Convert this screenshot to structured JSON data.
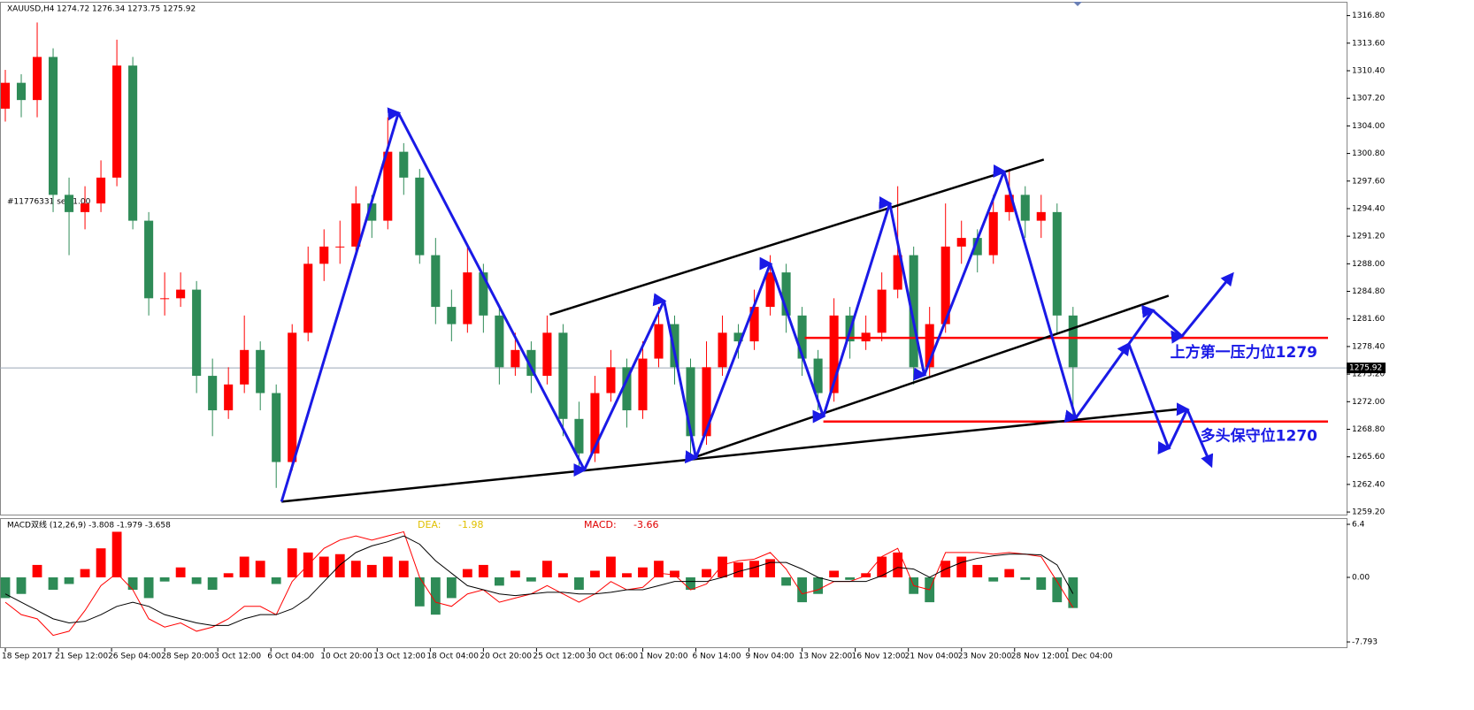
{
  "chart_data": [
    {
      "type": "candlestick",
      "title": "XAUUSD,H4",
      "quote": [
        1274.72,
        1276.34,
        1273.75,
        1275.92
      ],
      "note": "#11776331 sell 1.00",
      "up_color": "#ff0000",
      "down_color": "#2e8b57",
      "xlim": [
        -2,
        505
      ],
      "ylim": [
        1258.9,
        1318.3
      ],
      "x": [
        0,
        6,
        12,
        18,
        24,
        30,
        36,
        42,
        48,
        54,
        60,
        66,
        72,
        78,
        84,
        90,
        96,
        102,
        108,
        114,
        120,
        126,
        132,
        138,
        144,
        150,
        156,
        162,
        168,
        174,
        180,
        186,
        192,
        198,
        204,
        210,
        216,
        222,
        228,
        234,
        240,
        246,
        252,
        258,
        264,
        270,
        276,
        282,
        288,
        294,
        300,
        306,
        312,
        318,
        324,
        330,
        336,
        342,
        348,
        354,
        360,
        366,
        372,
        378,
        384,
        390,
        396,
        402
      ],
      "open": [
        1306,
        1309,
        1307,
        1312,
        1296,
        1294,
        1295,
        1298,
        1311,
        1293,
        1284,
        1284,
        1285,
        1275,
        1271,
        1274,
        1278,
        1273,
        1265,
        1280,
        1288,
        1290,
        1290,
        1295,
        1293,
        1301,
        1298,
        1289,
        1283,
        1281,
        1287,
        1282,
        1276,
        1278,
        1275,
        1280,
        1270,
        1266,
        1273,
        1276,
        1271,
        1277,
        1281,
        1276,
        1268,
        1276,
        1280,
        1279,
        1283,
        1287,
        1282,
        1277,
        1273,
        1282,
        1279,
        1280,
        1285,
        1289,
        1276,
        1281,
        1290,
        1291,
        1289,
        1294,
        1296,
        1293,
        1294,
        1282
      ],
      "high": [
        1310.5,
        1310,
        1316,
        1313,
        1298,
        1297,
        1300,
        1314,
        1312,
        1294,
        1287,
        1287,
        1286,
        1277,
        1276,
        1282,
        1279,
        1274,
        1281,
        1290,
        1292,
        1293,
        1297,
        1296,
        1305,
        1302,
        1299,
        1291,
        1285,
        1290,
        1288,
        1283,
        1280,
        1279,
        1282,
        1281,
        1272,
        1275,
        1278,
        1277,
        1279,
        1283,
        1282,
        1277,
        1279,
        1282,
        1281,
        1285,
        1289,
        1288,
        1283,
        1278,
        1284,
        1283,
        1282,
        1287,
        1297,
        1290,
        1283,
        1295,
        1293,
        1292,
        1296,
        1299,
        1297,
        1296,
        1295,
        1283
      ],
      "low": [
        1304.5,
        1305,
        1305,
        1294,
        1289,
        1292,
        1294,
        1297,
        1292,
        1282,
        1282,
        1283,
        1273,
        1268,
        1270,
        1273,
        1271,
        1262,
        1264,
        1279,
        1286,
        1288,
        1289,
        1291,
        1292,
        1296,
        1288,
        1281,
        1279,
        1280,
        1280,
        1274,
        1275,
        1273,
        1274,
        1268,
        1264,
        1265,
        1272,
        1269,
        1270,
        1276,
        1274,
        1266,
        1267,
        1275,
        1277,
        1278,
        1282,
        1280,
        1275,
        1271,
        1272,
        1277,
        1278,
        1279,
        1284,
        1274,
        1275,
        1280,
        1288,
        1287,
        1288,
        1293,
        1291,
        1291,
        1280,
        1270
      ],
      "close": [
        1309,
        1307,
        1312,
        1296,
        1294,
        1295,
        1298,
        1311,
        1293,
        1284,
        1284,
        1285,
        1275,
        1271,
        1274,
        1278,
        1273,
        1265,
        1280,
        1288,
        1290,
        1290,
        1295,
        1293,
        1301,
        1298,
        1289,
        1283,
        1281,
        1287,
        1282,
        1276,
        1278,
        1275,
        1280,
        1270,
        1266,
        1273,
        1276,
        1271,
        1277,
        1281,
        1276,
        1268,
        1276,
        1280,
        1279,
        1283,
        1287,
        1282,
        1277,
        1273,
        1282,
        1279,
        1280,
        1285,
        1289,
        1276,
        1281,
        1290,
        1291,
        1289,
        1294,
        1296,
        1293,
        1294,
        1282,
        1276
      ],
      "yticks": [
        {
          "value": 1316.8,
          "label": "1316.80"
        },
        {
          "value": 1313.6,
          "label": "1313.60"
        },
        {
          "value": 1310.4,
          "label": "1310.40"
        },
        {
          "value": 1307.2,
          "label": "1307.20"
        },
        {
          "value": 1304,
          "label": "1304.00"
        },
        {
          "value": 1300.8,
          "label": "1300.80"
        },
        {
          "value": 1297.6,
          "label": "1297.60"
        },
        {
          "value": 1294.4,
          "label": "1294.40"
        },
        {
          "value": 1291.2,
          "label": "1291.20"
        },
        {
          "value": 1288,
          "label": "1288.00"
        },
        {
          "value": 1284.8,
          "label": "1284.80"
        },
        {
          "value": 1281.6,
          "label": "1281.60"
        },
        {
          "value": 1278.4,
          "label": "1278.40"
        },
        {
          "value": 1275.2,
          "label": "1275.20"
        },
        {
          "value": 1272,
          "label": "1272.00"
        },
        {
          "value": 1268.8,
          "label": "1268.80"
        },
        {
          "value": 1265.6,
          "label": "1265.60"
        },
        {
          "value": 1262.4,
          "label": "1262.40"
        },
        {
          "value": 1259.2,
          "label": "1259.20"
        }
      ],
      "xticks": [
        {
          "value": 0,
          "label": "18 Sep 2017"
        },
        {
          "value": 20,
          "label": "21 Sep 12:00"
        },
        {
          "value": 40,
          "label": "26 Sep 04:00"
        },
        {
          "value": 60,
          "label": "28 Sep 20:00"
        },
        {
          "value": 80,
          "label": "3 Oct 12:00"
        },
        {
          "value": 100,
          "label": "6 Oct 04:00"
        },
        {
          "value": 120,
          "label": "10 Oct 20:00"
        },
        {
          "value": 140,
          "label": "13 Oct 12:00"
        },
        {
          "value": 160,
          "label": "18 Oct 04:00"
        },
        {
          "value": 180,
          "label": "20 Oct 20:00"
        },
        {
          "value": 200,
          "label": "25 Oct 12:00"
        },
        {
          "value": 220,
          "label": "30 Oct 06:00"
        },
        {
          "value": 240,
          "label": "1 Nov 20:00"
        },
        {
          "value": 260,
          "label": "6 Nov 14:00"
        },
        {
          "value": 280,
          "label": "9 Nov 04:00"
        },
        {
          "value": 300,
          "label": "13 Nov 22:00"
        },
        {
          "value": 320,
          "label": "16 Nov 12:00"
        },
        {
          "value": 340,
          "label": "21 Nov 04:00"
        },
        {
          "value": 360,
          "label": "23 Nov 20:00"
        },
        {
          "value": 380,
          "label": "28 Nov 12:00"
        },
        {
          "value": 400,
          "label": "1 Dec 04:00"
        }
      ],
      "trendlines": [
        {
          "color": "#000000",
          "x": [
            104,
            444
          ],
          "y": [
            1260.4,
            1271.2
          ]
        },
        {
          "color": "#000000",
          "x": [
            205,
            391
          ],
          "y": [
            1282.1,
            1300.1
          ]
        },
        {
          "color": "#000000",
          "x": [
            258,
            438
          ],
          "y": [
            1265.4,
            1284.3
          ]
        }
      ],
      "zigzags": [
        {
          "color": "#1a1ae6",
          "x": [
            104,
            148,
            218,
            248,
            260,
            288,
            308,
            333,
            346,
            376,
            403,
            423,
            432,
            443,
            462
          ],
          "y": [
            1260.4,
            1305.5,
            1264.1,
            1283.7,
            1265.5,
            1288.0,
            1270.3,
            1295.0,
            1275.1,
            1298.7,
            1270.1,
            1278.7,
            1282.6,
            1279.6,
            1286.8
          ]
        },
        {
          "color": "#1a1ae6",
          "x": [
            423,
            438,
            445,
            454
          ],
          "y": [
            1278.7,
            1266.6,
            1271.1,
            1264.6
          ]
        }
      ],
      "levels": [
        {
          "value": 1279.4,
          "x": [
            301,
            498
          ],
          "color": "#ff0000",
          "label": "上方第一压力位1279"
        },
        {
          "value": 1269.7,
          "x": [
            308,
            498
          ],
          "color": "#ff0000",
          "label": "多头保守位1270"
        }
      ]
    },
    {
      "type": "macd",
      "title": "MACD双线 (12,26,9) -3.808 -1.979 -3.658",
      "up_color": "#ff0000",
      "down_color": "#2e8b57",
      "ylim": [
        -8.43,
        7.04
      ],
      "yticks": [
        6.4,
        {
          "value": 0,
          "label": "0.00"
        },
        -7.793
      ],
      "histogram": [
        -2.5,
        -2.0,
        1.5,
        -1.5,
        -0.8,
        1.0,
        3.5,
        5.5,
        -1.5,
        -2.5,
        -0.5,
        1.2,
        -0.8,
        -1.5,
        0.5,
        2.5,
        2.0,
        -0.8,
        3.5,
        3.0,
        2.5,
        2.8,
        2.0,
        1.5,
        2.5,
        2.0,
        -3.5,
        -4.5,
        -2.5,
        1.0,
        1.5,
        -1.0,
        0.8,
        -0.5,
        2.0,
        0.5,
        -1.5,
        0.8,
        2.5,
        0.5,
        1.2,
        2.0,
        0.8,
        -1.5,
        1.0,
        2.5,
        1.8,
        2.0,
        2.2,
        -1.0,
        -3.0,
        -2.0,
        0.8,
        -0.3,
        0.5,
        2.5,
        3.0,
        -2.0,
        -3.0,
        2.0,
        2.5,
        1.5,
        -0.5,
        1.0,
        -0.3,
        -1.5,
        -3.0,
        -3.7
      ],
      "series": [
        {
          "name": "MACD:",
          "color": "#ff0000",
          "values": [
            -3,
            -4.5,
            -5,
            -7,
            -6.5,
            -4,
            -1,
            0.5,
            -1.5,
            -5,
            -6,
            -5.5,
            -6.5,
            -6,
            -5,
            -3.5,
            -3.5,
            -4.5,
            -0.5,
            1.5,
            3.5,
            4.5,
            5,
            4.5,
            5,
            5.5,
            0,
            -3,
            -3.5,
            -2,
            -1.5,
            -3,
            -2.5,
            -2,
            -1,
            -2,
            -3,
            -2,
            -0.5,
            -1.5,
            -1.2,
            0.5,
            0.3,
            -1.5,
            -0.8,
            1.5,
            2,
            2.2,
            3,
            1,
            -2,
            -1.5,
            -0.5,
            -0.5,
            0.2,
            2.5,
            3.5,
            -1,
            -1.5,
            3,
            3,
            3,
            2.8,
            3,
            2.8,
            2.5,
            -0.5,
            -3.66
          ]
        },
        {
          "name": "DEA:",
          "color": "#000000",
          "values": [
            -2,
            -3,
            -4,
            -5,
            -5.5,
            -5.3,
            -4.5,
            -3.5,
            -3,
            -3.5,
            -4.5,
            -5,
            -5.5,
            -5.8,
            -5.8,
            -5,
            -4.5,
            -4.5,
            -3.8,
            -2.5,
            -0.5,
            1.5,
            3,
            3.8,
            4.3,
            5,
            4,
            2,
            0.5,
            -1,
            -1.5,
            -2,
            -2.2,
            -2,
            -1.8,
            -1.8,
            -2,
            -2,
            -1.8,
            -1.5,
            -1.5,
            -1,
            -0.5,
            -0.5,
            -0.5,
            0,
            0.7,
            1.2,
            1.8,
            1.8,
            1,
            0,
            -0.5,
            -0.5,
            -0.5,
            0.2,
            1.2,
            1,
            0,
            1,
            1.8,
            2.3,
            2.6,
            2.8,
            2.8,
            2.7,
            1.5,
            -1.98
          ]
        }
      ]
    }
  ]
}
